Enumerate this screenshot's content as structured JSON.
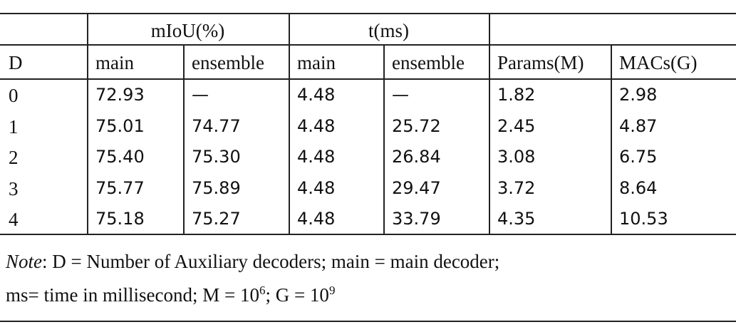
{
  "table": {
    "header_groups": [
      "mIoU(%)",
      "t(ms)"
    ],
    "columns": [
      "D",
      "main",
      "ensemble",
      "main",
      "ensemble",
      "Params(M)",
      "MACs(G)"
    ],
    "rows": [
      [
        "0",
        "72.93",
        "—",
        "4.48",
        "—",
        "1.82",
        "2.98"
      ],
      [
        "1",
        "75.01",
        "74.77",
        "4.48",
        "25.72",
        "2.45",
        "4.87"
      ],
      [
        "2",
        "75.40",
        "75.30",
        "4.48",
        "26.84",
        "3.08",
        "6.75"
      ],
      [
        "3",
        "75.77",
        "75.89",
        "4.48",
        "29.47",
        "3.72",
        "8.64"
      ],
      [
        "4",
        "75.18",
        "75.27",
        "4.48",
        "33.79",
        "4.35",
        "10.53"
      ]
    ],
    "note": {
      "label": "Note",
      "line1": ": D = Number of Auxiliary decoders; main = main decoder;",
      "line2": [
        "ms= time in millisecond; M = 10",
        "6",
        "; G = 10",
        "9"
      ]
    }
  }
}
